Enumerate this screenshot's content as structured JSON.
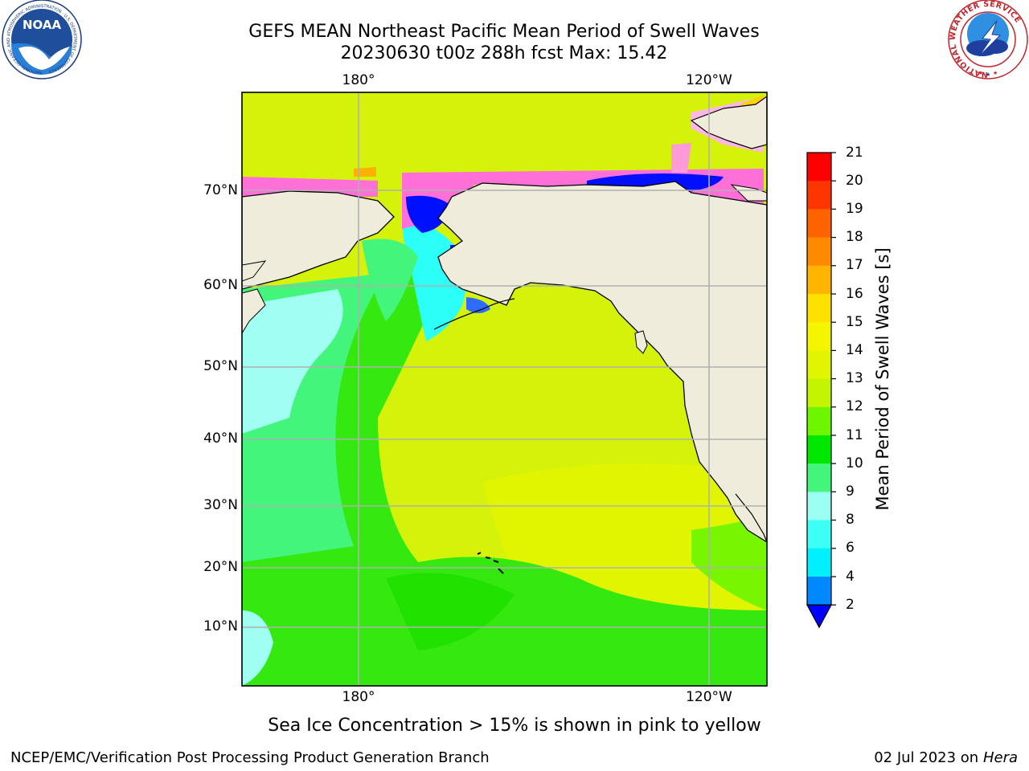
{
  "header": {
    "title_line1": "GEFS MEAN Northeast Pacific Mean Period of Swell Waves",
    "title_line2": "20230630 t00z 288h fcst   Max: 15.42"
  },
  "logos": {
    "noaa": "NOAA",
    "noaa_ring": "NATIONAL OCEANIC AND ATMOSPHERIC ADMINISTRATION · U.S. DEPARTMENT OF COMMERCE",
    "nws_ring": "NATIONAL WEATHER SERVICE"
  },
  "map": {
    "lon_top": [
      "180°",
      "120°W"
    ],
    "lon_bottom": [
      "180°",
      "120°W"
    ],
    "lat_labels": [
      "70°N",
      "60°N",
      "50°N",
      "40°N",
      "30°N",
      "20°N",
      "10°N"
    ],
    "colors": {
      "land": "#efecdb",
      "ocean_main": "#d4f20a",
      "ocean_green": "#34e810",
      "ocean_cyan": "#a0fff2",
      "ice_pink": "#ff6fd8",
      "ice_blue": "#0010ff"
    }
  },
  "colorbar": {
    "label": "Mean Period of Swell Waves [s]",
    "ticks": [
      "21",
      "20",
      "19",
      "18",
      "17",
      "16",
      "15",
      "14",
      "13",
      "12",
      "11",
      "10",
      "9",
      "8",
      "6",
      "4",
      "2"
    ],
    "colors": [
      "#ff0000",
      "#ff3500",
      "#ff6300",
      "#ff8a00",
      "#ffb400",
      "#ffe100",
      "#f5f500",
      "#e2f500",
      "#c4f500",
      "#6ef500",
      "#00e800",
      "#43f57a",
      "#9bfff2",
      "#3cfff5",
      "#00f0ff",
      "#0088ff",
      "#0000ff"
    ]
  },
  "notes": {
    "sea_ice": "Sea Ice Concentration > 15% is shown in pink to yellow"
  },
  "footer": {
    "left": "NCEP/EMC/Verification Post Processing Product Generation Branch",
    "right_date": "02 Jul 2023 on ",
    "right_machine": "Hera"
  }
}
